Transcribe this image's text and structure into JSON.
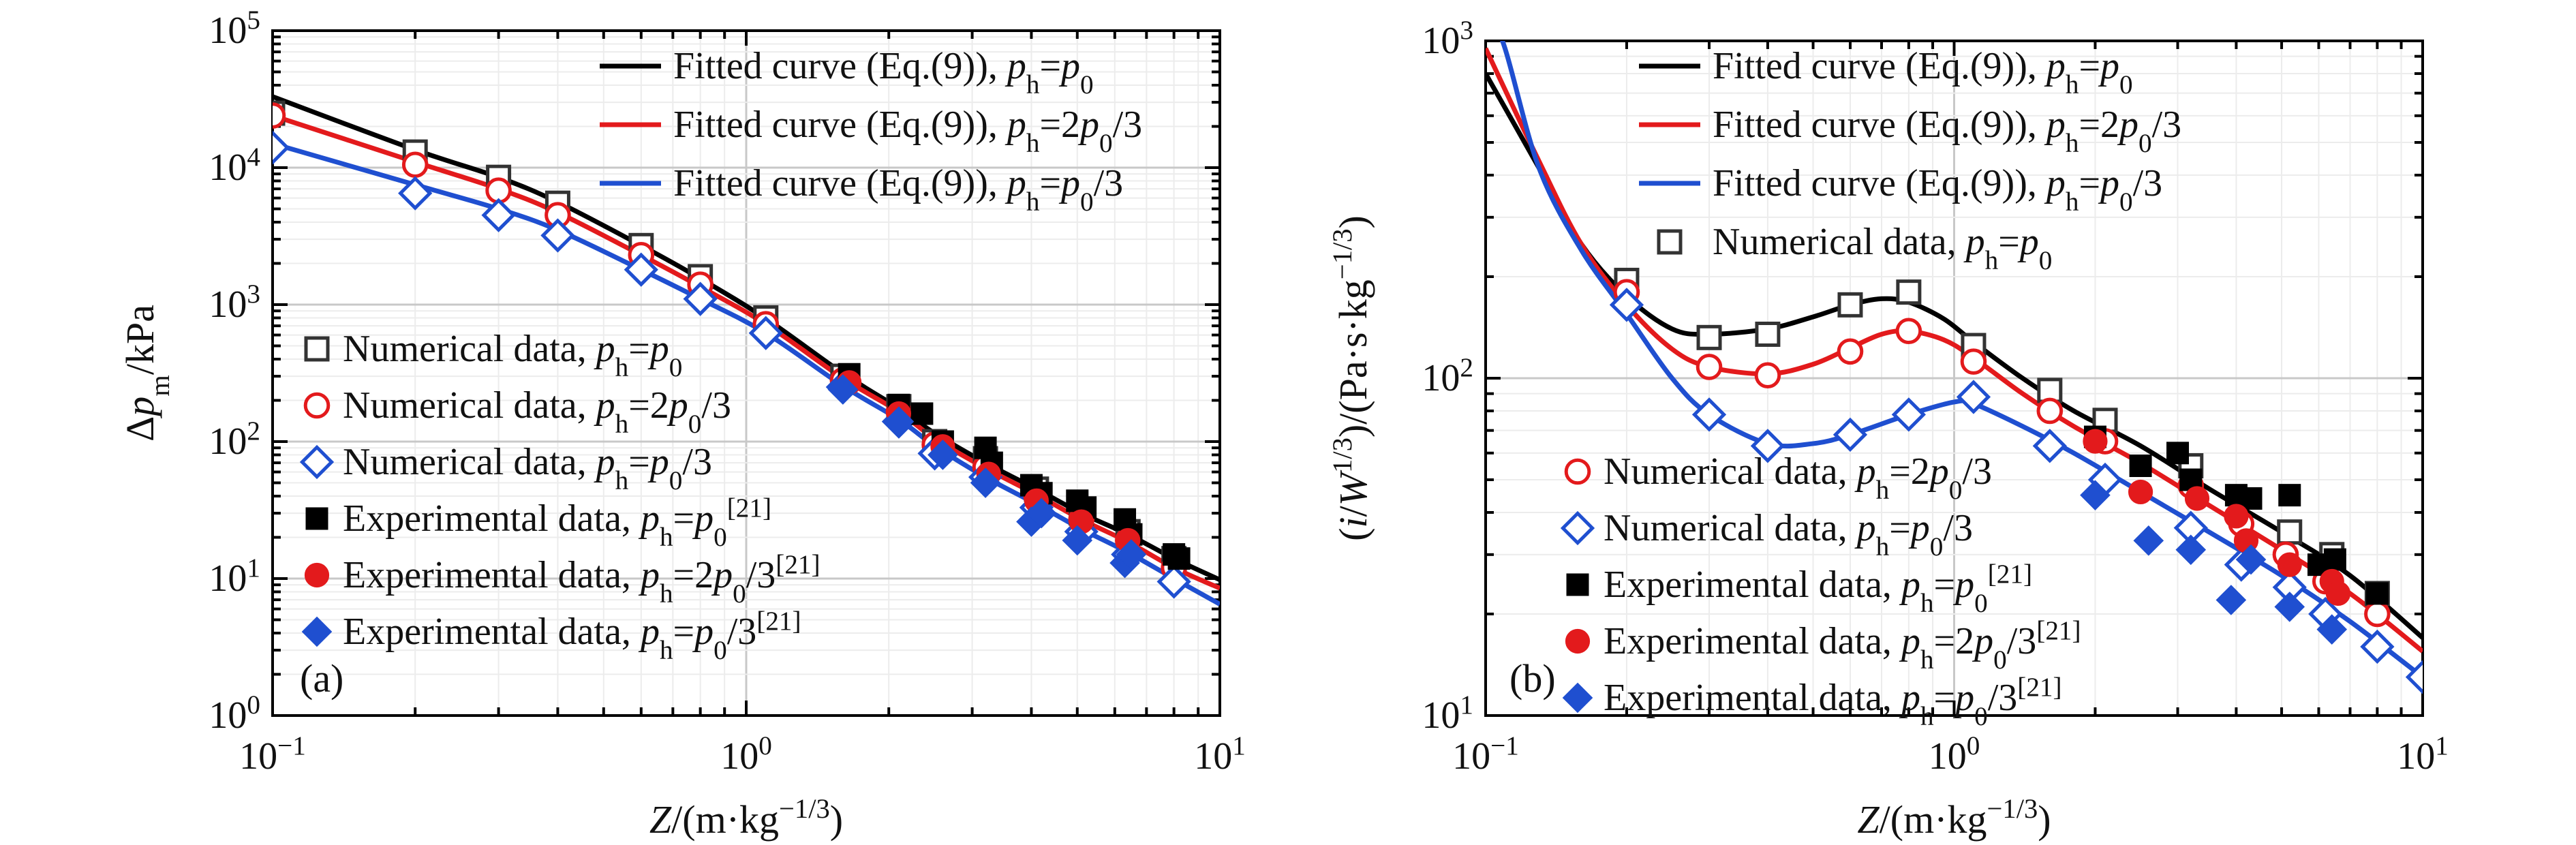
{
  "chart_data": [
    {
      "type": "line",
      "panel_label": "(a)",
      "xlabel": {
        "main": "Z",
        "rest": "/(m·kg",
        "sup": "−1/3",
        "close": ")"
      },
      "ylabel": {
        "pre": "Δp",
        "sub": "m",
        "post": "/kPa"
      },
      "xscale": "log",
      "yscale": "log",
      "xlim": [
        0.1,
        10
      ],
      "ylim": [
        1,
        100000
      ],
      "xticks": [
        {
          "value": 0.1,
          "base": "10",
          "exp": "−1"
        },
        {
          "value": 1,
          "base": "10",
          "exp": "0"
        },
        {
          "value": 10,
          "base": "10",
          "exp": "1"
        }
      ],
      "yticks": [
        {
          "value": 1,
          "base": "10",
          "exp": "0"
        },
        {
          "value": 10,
          "base": "10",
          "exp": "1"
        },
        {
          "value": 100,
          "base": "10",
          "exp": "2"
        },
        {
          "value": 1000,
          "base": "10",
          "exp": "3"
        },
        {
          "value": 10000,
          "base": "10",
          "exp": "4"
        },
        {
          "value": 100000,
          "base": "10",
          "exp": "5"
        }
      ],
      "grid": true,
      "legend_main": "top-right",
      "legend_secondary": "middle-left",
      "series": [
        {
          "key": "a_fit_p0",
          "kind": "curve",
          "color": "#000000",
          "legend_group": "main",
          "label": {
            "pre": "Fitted curve (Eq.(9)), p",
            "sub": "h",
            "mid": "=p",
            "sub2": "0",
            "post": "",
            "sup": ""
          },
          "x": [
            0.1,
            0.2,
            0.3,
            0.4,
            0.6,
            0.8,
            1.1,
            1.6,
            2.1,
            2.5,
            3.2,
            4.1,
            5.1,
            6.4,
            8.0,
            10.0
          ],
          "y": [
            33000,
            13500,
            8500,
            5600,
            2700,
            1550,
            790,
            315,
            175,
            115,
            70,
            45,
            30,
            21,
            14,
            9.8
          ]
        },
        {
          "key": "a_fit_2p0",
          "kind": "curve",
          "color": "#e31a1c",
          "legend_group": "main",
          "label": {
            "pre": "Fitted curve (Eq.(9)), p",
            "sub": "h",
            "mid": "=2p",
            "sub2": "0",
            "post": "/3",
            "sup": ""
          },
          "x": [
            0.1,
            0.2,
            0.3,
            0.4,
            0.6,
            0.8,
            1.1,
            1.6,
            2.1,
            2.5,
            3.2,
            4.1,
            5.1,
            6.4,
            8.0,
            10.0
          ],
          "y": [
            24000,
            11000,
            7000,
            4700,
            2300,
            1350,
            720,
            290,
            165,
            105,
            64,
            41,
            27,
            18.5,
            12,
            8.5
          ]
        },
        {
          "key": "a_fit_p03",
          "kind": "curve",
          "color": "#1f4fd0",
          "legend_group": "main",
          "label": {
            "pre": "Fitted curve (Eq.(9)), p",
            "sub": "h",
            "mid": "=p",
            "sub2": "0",
            "post": "/3",
            "sup": ""
          },
          "x": [
            0.1,
            0.2,
            0.3,
            0.4,
            0.6,
            0.8,
            1.1,
            1.6,
            2.1,
            2.5,
            3.2,
            4.1,
            5.1,
            6.4,
            8.0,
            10.0
          ],
          "y": [
            15000,
            7500,
            5000,
            3500,
            1800,
            1100,
            620,
            255,
            145,
            93,
            55,
            35,
            23,
            15.5,
            10,
            6.5
          ]
        },
        {
          "key": "a_num_p0",
          "kind": "marker",
          "marker": "open-square",
          "color": "#333333",
          "legend_group": "secondary",
          "label": {
            "pre": "Numerical data, p",
            "sub": "h",
            "mid": "=p",
            "sub2": "0",
            "post": "",
            "sup": ""
          },
          "x": [
            0.1,
            0.2,
            0.3,
            0.4,
            0.6,
            0.8,
            1.1,
            1.6,
            2.1,
            2.5,
            3.2,
            4.1,
            5.1,
            6.4,
            8.0
          ],
          "y": [
            25000,
            13000,
            8500,
            5500,
            2700,
            1600,
            800,
            300,
            180,
            100,
            75,
            45,
            30,
            22,
            14
          ]
        },
        {
          "key": "a_num_2p0",
          "kind": "marker",
          "marker": "open-circle",
          "color": "#e31a1c",
          "legend_group": "secondary",
          "label": {
            "pre": "Numerical data, p",
            "sub": "h",
            "mid": "=2p",
            "sub2": "0",
            "post": "/3",
            "sup": ""
          },
          "x": [
            0.1,
            0.2,
            0.3,
            0.4,
            0.6,
            0.8,
            1.1,
            1.6,
            2.1,
            2.5,
            3.2,
            4.1,
            5.1,
            6.4,
            8.0
          ],
          "y": [
            24000,
            10500,
            6800,
            4500,
            2300,
            1400,
            720,
            280,
            165,
            95,
            65,
            40,
            27,
            19,
            12
          ]
        },
        {
          "key": "a_num_p03",
          "kind": "marker",
          "marker": "open-diamond",
          "color": "#1f4fd0",
          "legend_group": "secondary",
          "label": {
            "pre": "Numerical data, p",
            "sub": "h",
            "mid": "=p",
            "sub2": "0",
            "post": "/3",
            "sup": ""
          },
          "x": [
            0.1,
            0.2,
            0.3,
            0.4,
            0.6,
            0.8,
            1.1,
            1.6,
            2.1,
            2.5,
            3.2,
            4.1,
            5.1,
            6.4,
            8.0
          ],
          "y": [
            14000,
            6500,
            4500,
            3200,
            1800,
            1100,
            620,
            250,
            140,
            82,
            55,
            33,
            22,
            15,
            9.5
          ]
        },
        {
          "key": "a_exp_p0",
          "kind": "marker",
          "marker": "filled-square",
          "color": "#000000",
          "legend_group": "secondary",
          "label": {
            "pre": "Experimental data, p",
            "sub": "h",
            "mid": "=p",
            "sub2": "0",
            "post": "",
            "sup": "[21]"
          },
          "x": [
            1.65,
            2.1,
            2.35,
            2.6,
            3.2,
            3.3,
            4.0,
            4.2,
            5.0,
            5.2,
            6.3,
            6.5,
            8.0,
            8.2
          ],
          "y": [
            310,
            185,
            160,
            100,
            90,
            70,
            48,
            42,
            37,
            33,
            27,
            21,
            15,
            14
          ]
        },
        {
          "key": "a_exp_2p0",
          "kind": "marker",
          "marker": "filled-circle",
          "color": "#e31a1c",
          "legend_group": "secondary",
          "label": {
            "pre": "Experimental data, p",
            "sub": "h",
            "mid": "=2p",
            "sub2": "0",
            "post": "/3",
            "sup": "[21]"
          },
          "x": [
            1.65,
            2.1,
            2.6,
            3.25,
            4.1,
            5.1,
            6.4
          ],
          "y": [
            270,
            160,
            92,
            58,
            37,
            26,
            19
          ]
        },
        {
          "key": "a_exp_p03",
          "kind": "marker",
          "marker": "filled-diamond",
          "color": "#1f4fd0",
          "legend_group": "secondary",
          "label": {
            "pre": "Experimental data, p",
            "sub": "h",
            "mid": "=p",
            "sub2": "0",
            "post": "/3",
            "sup": "[21]"
          },
          "x": [
            1.6,
            2.1,
            2.6,
            3.2,
            4.0,
            4.2,
            5.0,
            6.3,
            6.5
          ],
          "y": [
            240,
            140,
            80,
            50,
            26,
            30,
            19,
            13,
            15
          ]
        }
      ]
    },
    {
      "type": "line",
      "panel_label": "(b)",
      "xlabel": {
        "main": "Z",
        "rest": "/(m·kg",
        "sup": "−1/3",
        "close": ")"
      },
      "ylabel": {
        "pre": "(i/W",
        "sup": "1/3",
        "post": ")/(Pa·s·kg",
        "sup2": "−1/3",
        "close": ")"
      },
      "xscale": "log",
      "yscale": "log",
      "xlim": [
        0.1,
        10
      ],
      "ylim": [
        10,
        1000
      ],
      "xticks": [
        {
          "value": 0.1,
          "base": "10",
          "exp": "−1"
        },
        {
          "value": 1,
          "base": "10",
          "exp": "0"
        },
        {
          "value": 10,
          "base": "10",
          "exp": "1"
        }
      ],
      "yticks": [
        {
          "value": 10,
          "base": "10",
          "exp": "1"
        },
        {
          "value": 100,
          "base": "10",
          "exp": "2"
        },
        {
          "value": 1000,
          "base": "10",
          "exp": "3"
        }
      ],
      "grid": true,
      "legend_main": "top-right",
      "legend_secondary": "bottom-left",
      "series": [
        {
          "key": "b_fit_p0",
          "kind": "curve",
          "color": "#000000",
          "legend_group": "main",
          "label": {
            "pre": "Fitted curve (Eq.(9)), p",
            "sub": "h",
            "mid": "=p",
            "sub2": "0",
            "post": "",
            "sup": ""
          },
          "x": [
            0.1,
            0.13,
            0.16,
            0.2,
            0.25,
            0.3,
            0.4,
            0.5,
            0.6,
            0.7,
            0.8,
            0.95,
            1.1,
            1.4,
            1.8,
            2.5,
            3.5,
            5.0,
            7.0,
            10.0
          ],
          "y": [
            800,
            420,
            250,
            175,
            140,
            135,
            140,
            152,
            165,
            172,
            168,
            150,
            128,
            100,
            80,
            63,
            47,
            35,
            26,
            17
          ]
        },
        {
          "key": "b_fit_2p0",
          "kind": "curve",
          "color": "#e31a1c",
          "legend_group": "main",
          "label": {
            "pre": "Fitted curve (Eq.(9)), p",
            "sub": "h",
            "mid": "=2p",
            "sub2": "0",
            "post": "/3",
            "sup": ""
          },
          "x": [
            0.1,
            0.13,
            0.16,
            0.2,
            0.25,
            0.3,
            0.4,
            0.5,
            0.6,
            0.7,
            0.8,
            0.95,
            1.1,
            1.4,
            1.8,
            2.5,
            3.5,
            5.0,
            7.0,
            10.0
          ],
          "y": [
            950,
            440,
            250,
            165,
            122,
            108,
            103,
            110,
            123,
            135,
            138,
            130,
            115,
            90,
            72,
            56,
            42,
            31,
            23,
            15.5
          ]
        },
        {
          "key": "b_fit_p03",
          "kind": "curve",
          "color": "#1f4fd0",
          "legend_group": "main",
          "label": {
            "pre": "Fitted curve (Eq.(9)), p",
            "sub": "h",
            "mid": "=p",
            "sub2": "0",
            "post": "/3",
            "sup": ""
          },
          "x": [
            0.1,
            0.11,
            0.13,
            0.16,
            0.2,
            0.25,
            0.3,
            0.4,
            0.5,
            0.6,
            0.8,
            1.0,
            1.1,
            1.4,
            1.8,
            2.5,
            3.5,
            5.0,
            7.0,
            10.0
          ],
          "y": [
            1300,
            950,
            420,
            240,
            155,
            100,
            78,
            64,
            64,
            68,
            78,
            85,
            84,
            72,
            60,
            46,
            35,
            26,
            19,
            13
          ]
        },
        {
          "key": "b_num_p0",
          "kind": "marker",
          "marker": "open-square",
          "color": "#333333",
          "legend_group": "main",
          "label": {
            "pre": "Numerical data, p",
            "sub": "h",
            "mid": "=p",
            "sub2": "0",
            "post": "",
            "sup": ""
          },
          "x": [
            0.2,
            0.3,
            0.4,
            0.6,
            0.8,
            1.1,
            1.6,
            2.1,
            3.2,
            5.2,
            6.4,
            8.0
          ],
          "y": [
            195,
            132,
            135,
            165,
            180,
            125,
            92,
            75,
            55,
            35,
            30,
            23
          ]
        },
        {
          "key": "b_num_2p0",
          "kind": "marker",
          "marker": "open-circle",
          "color": "#e31a1c",
          "legend_group": "secondary",
          "label": {
            "pre": "Numerical data, p",
            "sub": "h",
            "mid": "=2p",
            "sub2": "0",
            "post": "/3",
            "sup": ""
          },
          "x": [
            0.2,
            0.3,
            0.4,
            0.6,
            0.8,
            1.1,
            1.6,
            2.1,
            3.2,
            4.1,
            5.1,
            6.2,
            8.0
          ],
          "y": [
            180,
            108,
            102,
            120,
            138,
            112,
            80,
            65,
            48,
            37,
            30,
            25,
            20
          ]
        },
        {
          "key": "b_num_p03",
          "kind": "marker",
          "marker": "open-diamond",
          "color": "#1f4fd0",
          "legend_group": "secondary",
          "label": {
            "pre": "Numerical data, p",
            "sub": "h",
            "mid": "=p",
            "sub2": "0",
            "post": "/3",
            "sup": ""
          },
          "x": [
            0.2,
            0.3,
            0.4,
            0.6,
            0.8,
            1.1,
            1.6,
            2.1,
            3.2,
            4.1,
            5.2,
            6.2,
            8.0,
            10.0
          ],
          "y": [
            165,
            78,
            63,
            68,
            78,
            88,
            63,
            50,
            36,
            28,
            24,
            20,
            16,
            13
          ]
        },
        {
          "key": "b_exp_p0",
          "kind": "marker",
          "marker": "filled-square",
          "color": "#000000",
          "legend_group": "secondary",
          "label": {
            "pre": "Experimental data, p",
            "sub": "h",
            "mid": "=p",
            "sub2": "0",
            "post": "",
            "sup": "[21]"
          },
          "x": [
            2.0,
            2.5,
            3.0,
            3.2,
            4.0,
            4.3,
            5.2,
            6.0,
            6.5,
            8.0
          ],
          "y": [
            67,
            55,
            60,
            50,
            45,
            44,
            45,
            28,
            29,
            23
          ]
        },
        {
          "key": "b_exp_2p0",
          "kind": "marker",
          "marker": "filled-circle",
          "color": "#e31a1c",
          "legend_group": "secondary",
          "label": {
            "pre": "Experimental data, p",
            "sub": "h",
            "mid": "=2p",
            "sub2": "0",
            "post": "/3",
            "sup": "[21]"
          },
          "x": [
            2.0,
            2.5,
            3.3,
            4.0,
            4.2,
            5.2,
            6.4,
            6.6
          ],
          "y": [
            65,
            46,
            44,
            39,
            33,
            28,
            25,
            23
          ]
        },
        {
          "key": "b_exp_p03",
          "kind": "marker",
          "marker": "filled-diamond",
          "color": "#1f4fd0",
          "legend_group": "secondary",
          "label": {
            "pre": "Experimental data, p",
            "sub": "h",
            "mid": "=p",
            "sub2": "0",
            "post": "/3",
            "sup": "[21]"
          },
          "x": [
            2.0,
            2.6,
            3.2,
            3.9,
            4.3,
            5.2,
            6.4
          ],
          "y": [
            45,
            33,
            31,
            22,
            29,
            21,
            18
          ]
        }
      ]
    }
  ]
}
